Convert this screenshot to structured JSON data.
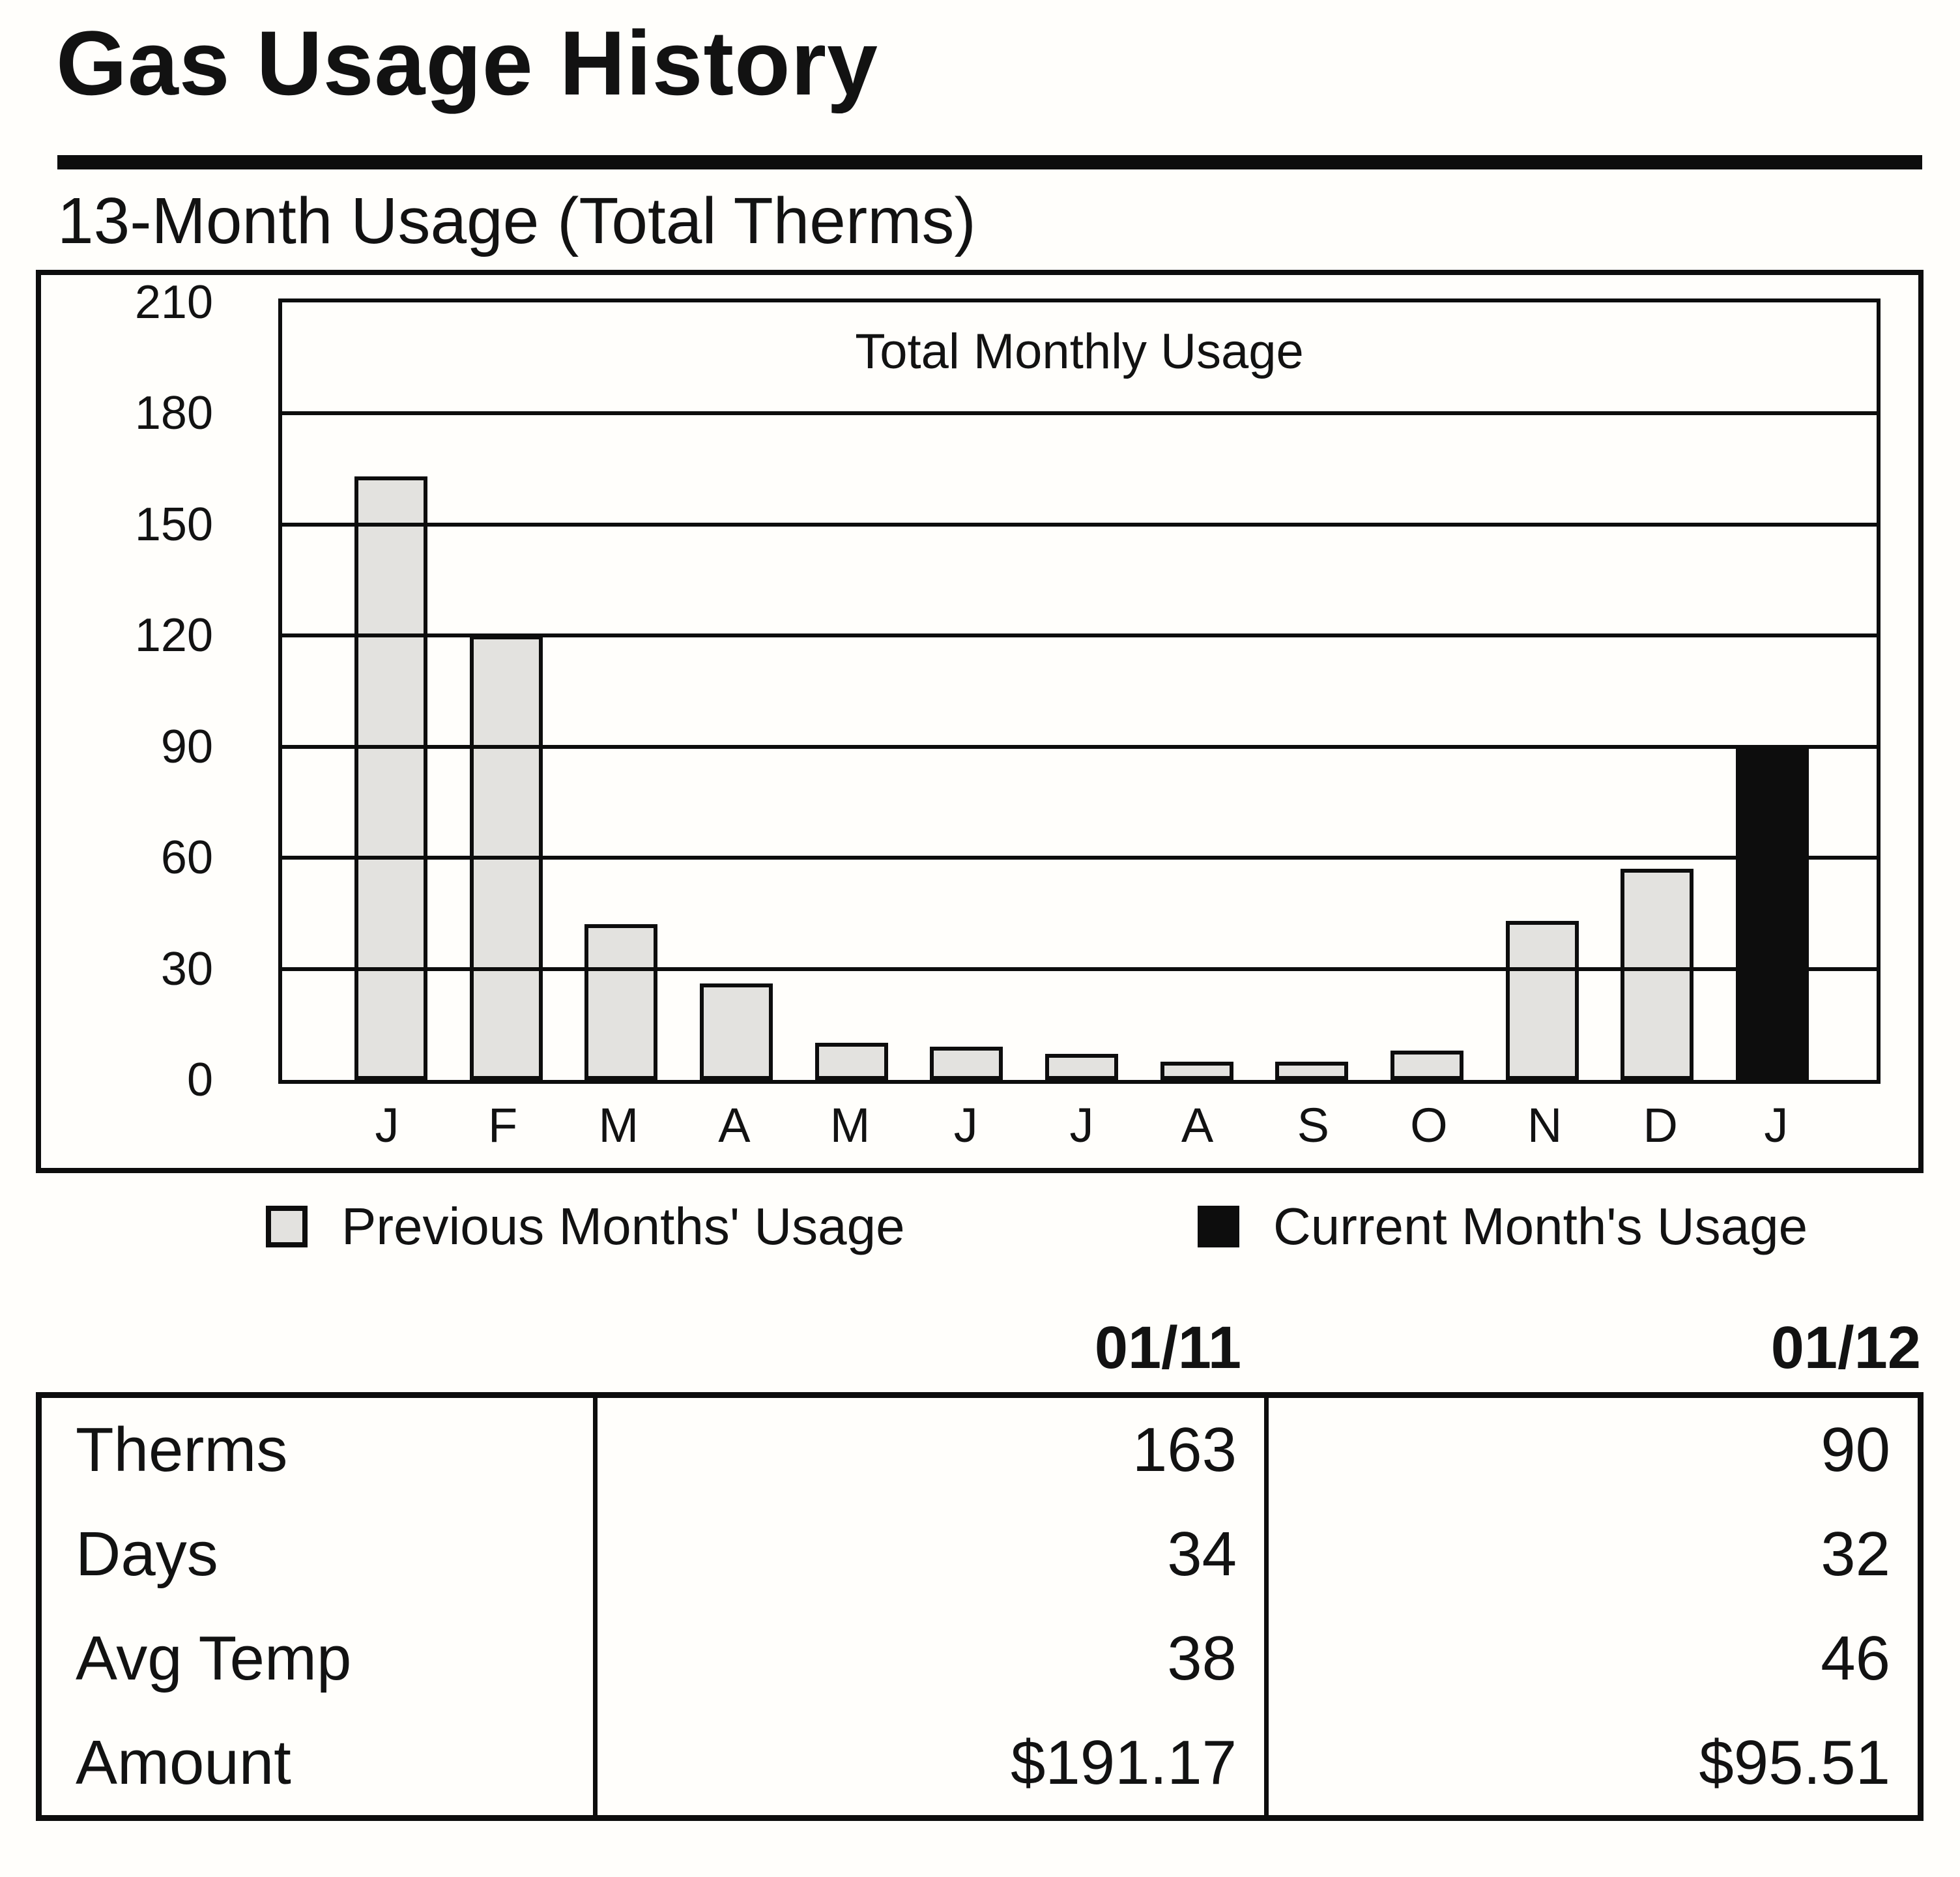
{
  "header": {
    "title": "Gas Usage History",
    "subtitle": "13-Month Usage (Total Therms)"
  },
  "chart_data": {
    "type": "bar",
    "title": "Total Monthly Usage",
    "categories": [
      "J",
      "F",
      "M",
      "A",
      "M",
      "J",
      "J",
      "A",
      "S",
      "O",
      "N",
      "D",
      "J"
    ],
    "values": [
      163,
      120,
      42,
      26,
      10,
      9,
      7,
      5,
      5,
      8,
      43,
      57,
      90
    ],
    "current_month_index": 12,
    "yticks": [
      210,
      180,
      150,
      120,
      90,
      60,
      30,
      0
    ],
    "ylim": [
      0,
      210
    ],
    "xlabel": "",
    "ylabel": "",
    "grid": "horizontal",
    "legend_position": "below-chart",
    "series": [
      {
        "name": "Previous Months' Usage",
        "color": "#e3e2df",
        "values": [
          163,
          120,
          42,
          26,
          10,
          9,
          7,
          5,
          5,
          8,
          43,
          57,
          null
        ]
      },
      {
        "name": "Current Month's Usage",
        "color": "#0d0d0d",
        "values": [
          null,
          null,
          null,
          null,
          null,
          null,
          null,
          null,
          null,
          null,
          null,
          null,
          90
        ]
      }
    ]
  },
  "legend": {
    "items": [
      {
        "label": "Previous Months' Usage",
        "color": "#e3e2df"
      },
      {
        "label": "Current Month's Usage",
        "color": "#0d0d0d"
      }
    ]
  },
  "table": {
    "col_headers": [
      "01/11",
      "01/12"
    ],
    "rows": [
      {
        "label": "Therms",
        "values": [
          "163",
          "90"
        ]
      },
      {
        "label": "Days",
        "values": [
          "34",
          "32"
        ]
      },
      {
        "label": "Avg Temp",
        "values": [
          "38",
          "46"
        ]
      },
      {
        "label": "Amount",
        "values": [
          "$191.17",
          "$95.51"
        ]
      }
    ]
  },
  "colors": {
    "previous_bar": "#e3e2df",
    "current_bar": "#0d0d0d",
    "ink": "#121212",
    "paper": "#fffefb"
  }
}
